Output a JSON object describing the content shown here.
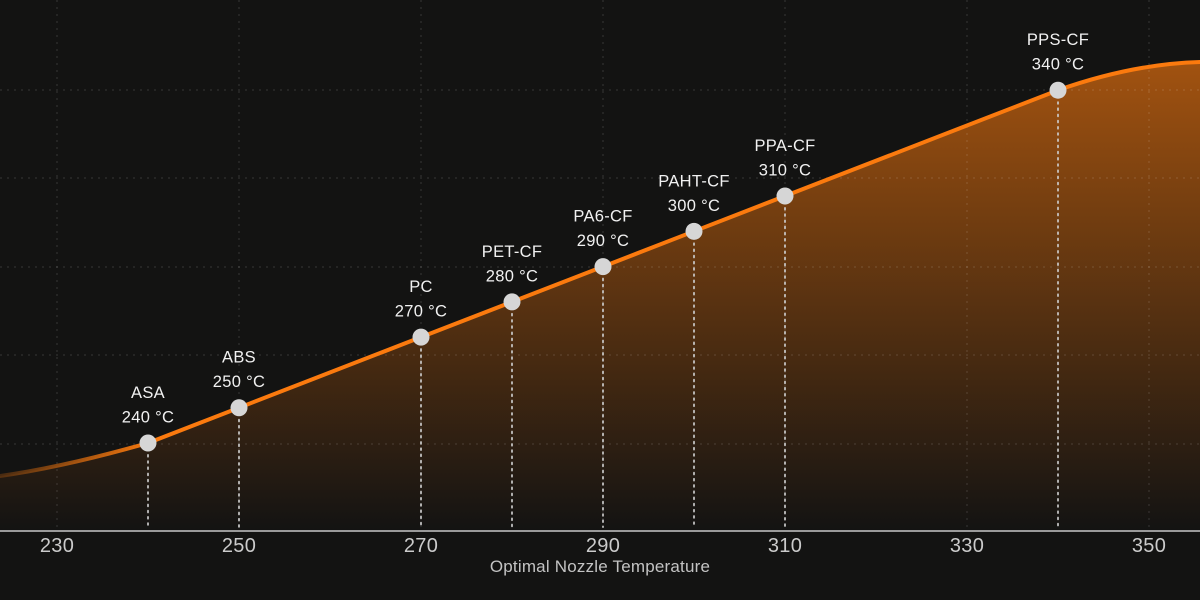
{
  "chart_data": {
    "type": "line",
    "title": "",
    "xlabel": "Optimal Nozzle Temperature",
    "ylabel": "",
    "x_ticks": [
      230,
      250,
      270,
      290,
      310,
      330,
      350
    ],
    "xlim": [
      223.7,
      356.3
    ],
    "grid": "dotted",
    "legend": false,
    "points": [
      {
        "material": "ASA",
        "temp_c": 240,
        "temp_label": "240 °C"
      },
      {
        "material": "ABS",
        "temp_c": 250,
        "temp_label": "250 °C"
      },
      {
        "material": "PC",
        "temp_c": 270,
        "temp_label": "270 °C"
      },
      {
        "material": "PET-CF",
        "temp_c": 280,
        "temp_label": "280 °C"
      },
      {
        "material": "PA6-CF",
        "temp_c": 290,
        "temp_label": "290 °C"
      },
      {
        "material": "PAHT-CF",
        "temp_c": 300,
        "temp_label": "300 °C"
      },
      {
        "material": "PPA-CF",
        "temp_c": 310,
        "temp_label": "310 °C"
      },
      {
        "material": "PPS-CF",
        "temp_c": 340,
        "temp_label": "340 °C"
      }
    ],
    "colors": {
      "background": "#131312",
      "line": "#fb7a0e",
      "area_top": "rgba(251,122,14,0.62)",
      "area_bottom": "rgba(251,122,14,0)",
      "marker": "#d6d6d6",
      "grid": "rgba(255,255,255,0.10)",
      "dropline": "#cccccc",
      "axis_line": "#9a9a9a",
      "tick_label": "#cbcbcb",
      "point_label": "#f1f1f1",
      "axis_title": "#c3c3c3"
    }
  }
}
